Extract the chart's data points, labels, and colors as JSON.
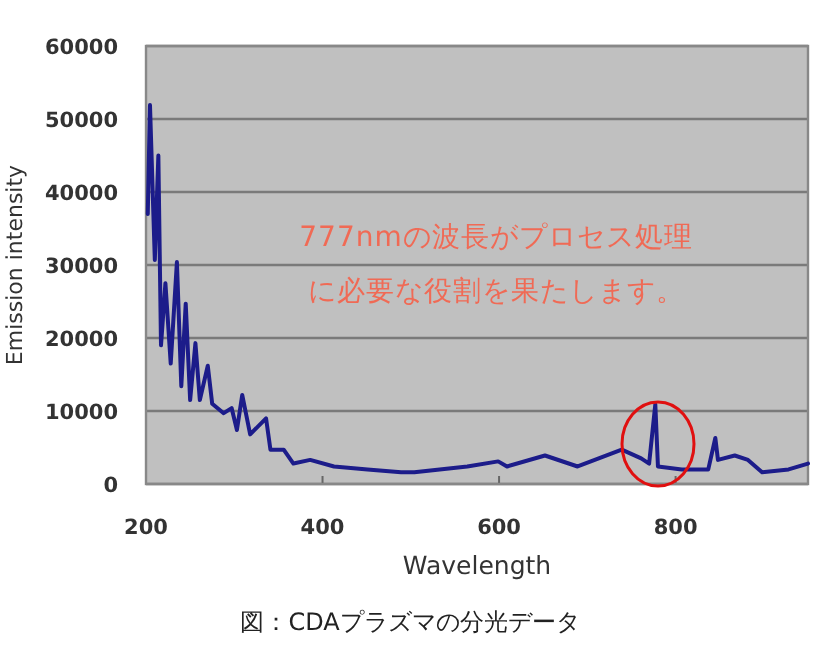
{
  "chart_data": {
    "type": "line",
    "xlabel": "Wavelength",
    "ylabel": "Emission intensity",
    "annotations": [
      "777nmの波長がプロセス処理に必要な役割を果たします。",
      "図：CDAプラズマの分光データ"
    ],
    "xlim": [
      200,
      950
    ],
    "xticks": [
      200,
      400,
      600,
      800
    ],
    "ylim": [
      0,
      60000
    ],
    "yticks": [
      0,
      10000,
      20000,
      30000,
      40000,
      50000,
      60000
    ],
    "grid": "y",
    "legend": false,
    "marker": "none",
    "line_style": "solid",
    "series": [
      {
        "color": "#1c1c8a",
        "x": [
          202,
          204.5,
          210,
          214,
          217,
          222,
          228,
          235,
          240,
          245,
          250,
          256,
          261,
          270,
          275,
          288,
          297,
          303,
          309,
          318,
          336,
          341,
          356,
          367,
          386,
          413,
          451,
          489,
          504,
          564,
          599,
          609,
          652,
          689,
          739,
          761,
          770,
          777,
          780,
          807,
          837,
          845,
          848,
          867,
          882,
          898,
          928,
          950
        ],
        "values": [
          37000,
          51900,
          30700,
          45000,
          19000,
          27500,
          16500,
          30400,
          13400,
          24700,
          11500,
          19300,
          11500,
          16200,
          11000,
          9700,
          10400,
          7400,
          12200,
          6800,
          9000,
          4700,
          4700,
          2800,
          3300,
          2400,
          2000,
          1600,
          1600,
          2400,
          3100,
          2400,
          3900,
          2400,
          4700,
          3500,
          2800,
          10900,
          2400,
          2000,
          2000,
          6300,
          3300,
          3900,
          3300,
          1600,
          2000,
          2800
        ]
      }
    ]
  }
}
